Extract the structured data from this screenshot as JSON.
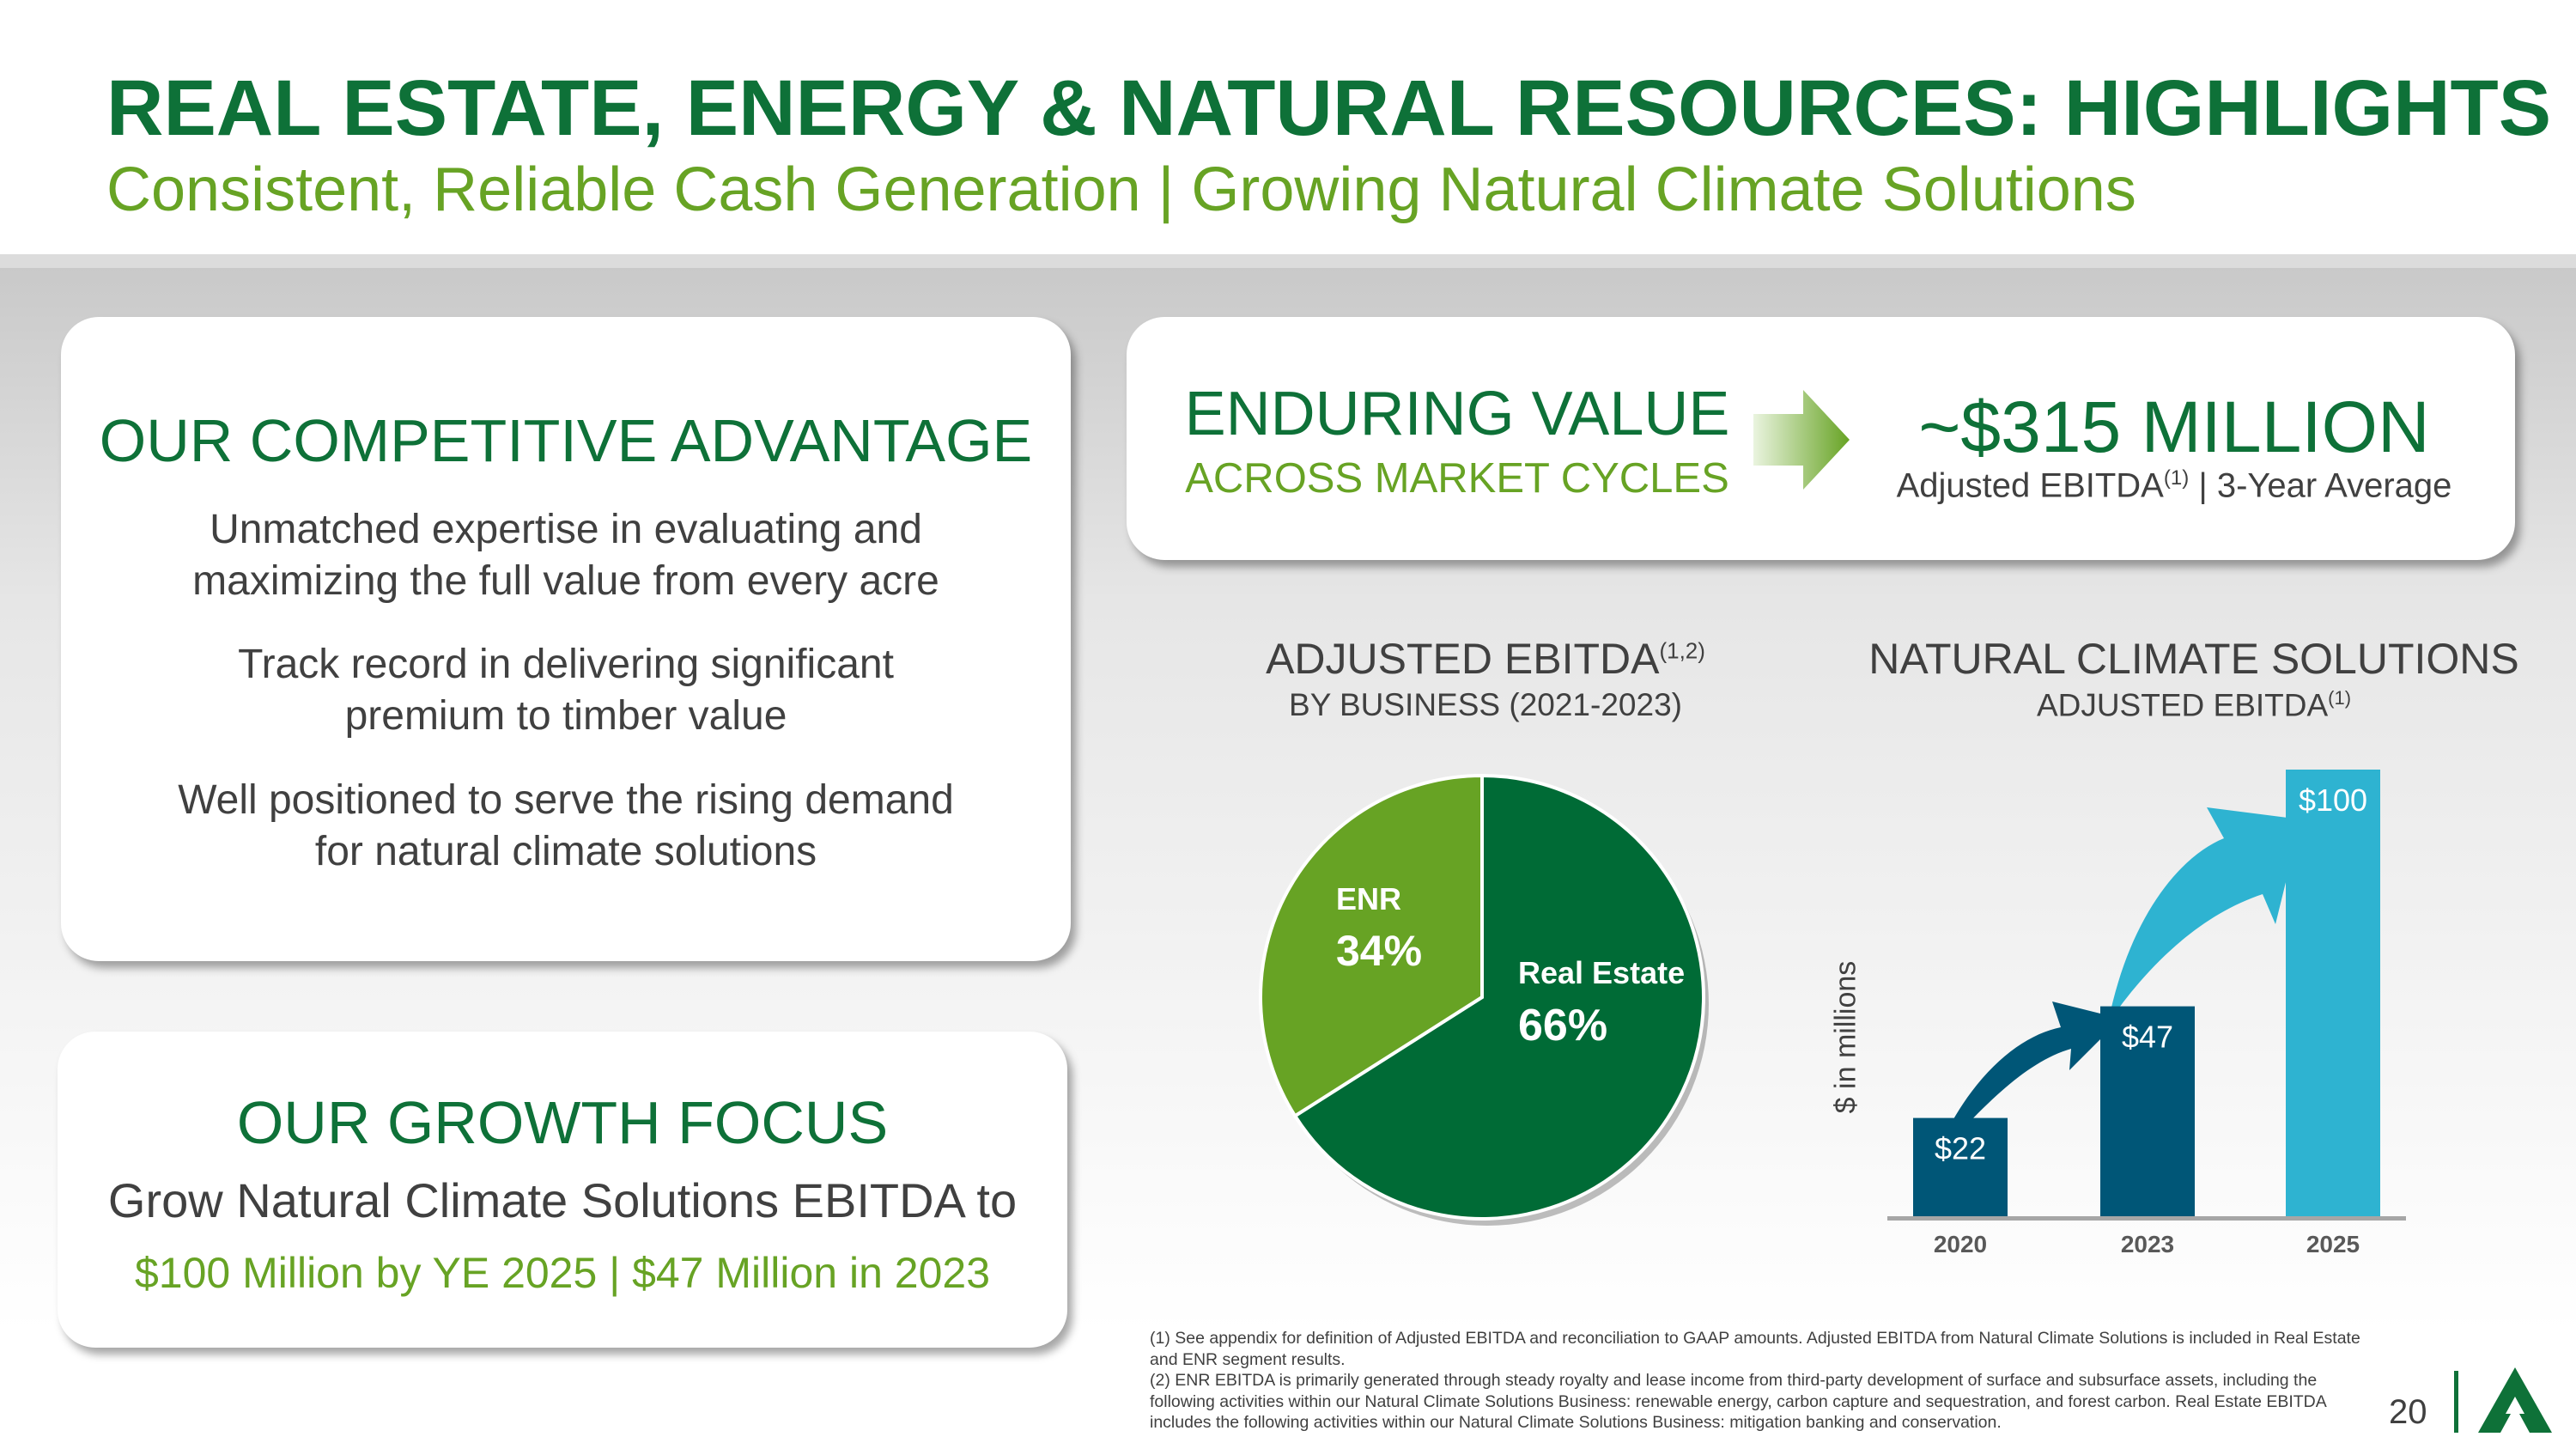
{
  "header": {
    "title": "REAL ESTATE, ENERGY & NATURAL RESOURCES: HIGHLIGHTS",
    "subtitle": "Consistent, Reliable Cash Generation | Growing Natural Climate Solutions"
  },
  "advantage": {
    "heading": "OUR COMPETITIVE ADVANTAGE",
    "points": [
      {
        "line1": "Unmatched expertise in evaluating and",
        "line2": "maximizing the full value from every acre"
      },
      {
        "line1": "Track record in delivering significant",
        "line2": "premium to timber value"
      },
      {
        "line1": "Well positioned to serve the rising demand",
        "line2": "for natural climate solutions"
      }
    ]
  },
  "growth": {
    "heading": "OUR GROWTH FOCUS",
    "line1": "Grow Natural Climate Solutions EBITDA to",
    "line2": "$100 Million by YE 2025 | $47 Million in 2023"
  },
  "value": {
    "heading": "ENDURING VALUE",
    "subheading": "ACROSS MARKET CYCLES",
    "amount": "~$315 MILLION",
    "caption_a": "Adjusted EBITDA",
    "caption_sup": "(1)",
    "caption_b": " | 3-Year Average"
  },
  "chart_data": [
    {
      "type": "pie",
      "title": "ADJUSTED EBITDA",
      "title_sup": "(1,2)",
      "subtitle": "BY BUSINESS (2021-2023)",
      "slices": [
        {
          "label": "Real Estate",
          "value": 66,
          "display": "66%",
          "color": "#006b36"
        },
        {
          "label": "ENR",
          "value": 34,
          "display": "34%",
          "color": "#67a324"
        }
      ]
    },
    {
      "type": "bar",
      "title": "NATURAL CLIMATE SOLUTIONS",
      "subtitle": "ADJUSTED EBITDA",
      "subtitle_sup": "(1)",
      "ylabel": "$ in millions",
      "categories": [
        "2020",
        "2023",
        "2025"
      ],
      "values": [
        22,
        47,
        100
      ],
      "labels": [
        "$22",
        "$47",
        "$100"
      ],
      "colors": [
        "#005677",
        "#005677",
        "#2eb3d1"
      ],
      "ylim": [
        0,
        100
      ]
    }
  ],
  "footnotes": {
    "n1": "(1) See appendix for definition of Adjusted EBITDA and reconciliation to GAAP amounts. Adjusted EBITDA from Natural Climate Solutions is included in Real Estate and ENR segment results.",
    "n2": "(2) ENR EBITDA is primarily generated through steady royalty and lease income from third-party development of surface and subsurface assets, including the following activities within our Natural Climate Solutions Business: renewable energy, carbon capture and sequestration, and forest carbon. Real Estate EBITDA includes the following activities within our Natural Climate Solutions Business: mitigation banking and conservation."
  },
  "page_number": "20",
  "logo_text": "A"
}
